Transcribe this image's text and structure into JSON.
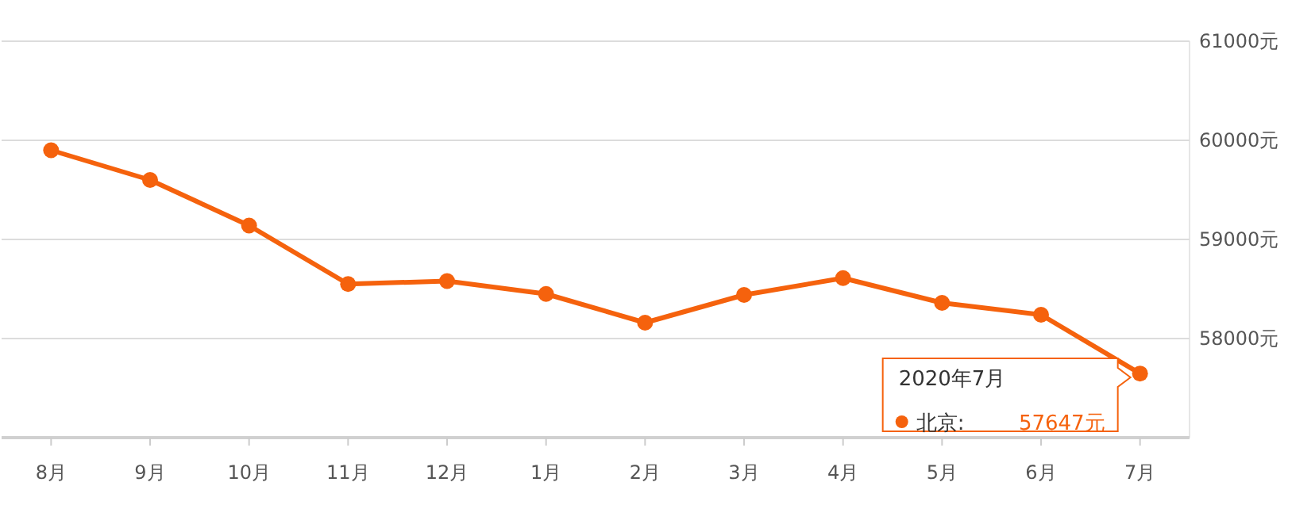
{
  "chart_data": {
    "type": "line",
    "categories": [
      "8月",
      "9月",
      "10月",
      "11月",
      "12月",
      "1月",
      "2月",
      "3月",
      "4月",
      "5月",
      "6月",
      "7月"
    ],
    "series": [
      {
        "name": "北京:",
        "color": "#f5620d",
        "values": [
          59900,
          59600,
          59140,
          58550,
          58580,
          58450,
          58160,
          58440,
          58610,
          58360,
          58240,
          57647
        ],
        "value_labels": [
          null,
          null,
          null,
          null,
          null,
          null,
          null,
          null,
          null,
          null,
          null,
          "57647元"
        ]
      }
    ],
    "ylim": [
      57000,
      61000
    ],
    "yticks": [
      {
        "value": 58000,
        "label": "58000元"
      },
      {
        "value": 59000,
        "label": "59000元"
      },
      {
        "value": 60000,
        "label": "60000元"
      },
      {
        "value": 61000,
        "label": "61000元"
      }
    ],
    "grid": "y",
    "marker": "circle",
    "line_style": "solid",
    "annotations": [
      "2020年7月"
    ]
  }
}
